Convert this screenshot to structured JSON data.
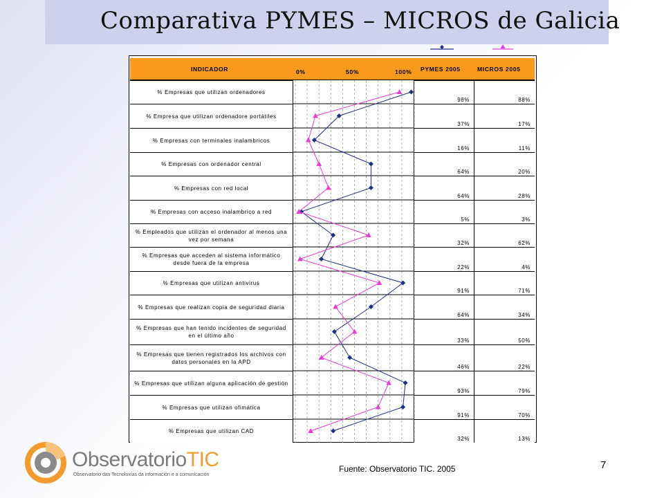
{
  "title": "Comparativa PYMES – MICROS de Galicia",
  "header": {
    "indicador": "INDICADOR",
    "tick_0": "0%",
    "tick_50": "50%",
    "tick_100": "100%",
    "col_pymes": "PYMES 2005",
    "col_micros": "MICROS 2005"
  },
  "colors": {
    "pymes": "#1f2f86",
    "micros": "#e83cd4",
    "header": "#f99a1c"
  },
  "chart_data": {
    "type": "line",
    "orientation": "horizontal-profile",
    "xlim": [
      0,
      100
    ],
    "categories": [
      "% Empresas que utilizan ordenadores",
      "% Empresa que utilizan ordenadore portátiles",
      "% Empresas con terminales inalambricos",
      "% Empresas con ordenador central",
      "% Empresas con red local",
      "% Empresas con acceso inalambrico a red",
      "% Empleados que utilizan el ordenador al menos una vez por semana",
      "% Empresas que acceden al sistema informático desde fuera de la empresa",
      "% Empresas que utilizan antivirus",
      "% Empresas que realizan copia de seguridad diaria",
      "% Empresas que han tenido incidentes de seguridad en el último año",
      "% Empresas que tienen registrados los archivos con datos personales en la APD",
      "% Empresas que utilizan alguna aplicación de gestión",
      "% Empresas que utilizan ofimática",
      "% Empresas que utilizan CAD"
    ],
    "series": [
      {
        "name": "PYMES 2005",
        "values": [
          98,
          37,
          16,
          64,
          64,
          5,
          32,
          22,
          91,
          64,
          33,
          46,
          93,
          91,
          32
        ]
      },
      {
        "name": "MICROS 2005",
        "values": [
          88,
          17,
          11,
          20,
          28,
          3,
          62,
          4,
          71,
          34,
          50,
          22,
          79,
          70,
          13
        ]
      }
    ],
    "value_labels_pymes": [
      "98%",
      "37%",
      "16%",
      "64%",
      "64%",
      "5%",
      "32%",
      "22%",
      "91%",
      "64%",
      "33%",
      "46%",
      "93%",
      "91%",
      "32%"
    ],
    "value_labels_micros": [
      "88%",
      "17%",
      "11%",
      "20%",
      "28%",
      "3%",
      "62%",
      "4%",
      "71%",
      "34%",
      "50%",
      "22%",
      "79%",
      "70%",
      "13%"
    ]
  },
  "logo": {
    "name_part1": "Observatorio",
    "name_part2": "TIC",
    "subtitle": "Observatorio das Tecnoloxías da información e a comunicación"
  },
  "source": "Fuente: Observatorio TIC. 2005",
  "page_number": "7"
}
